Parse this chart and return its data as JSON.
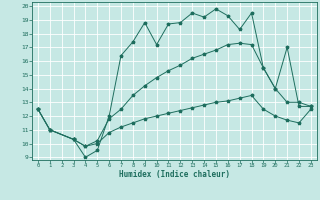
{
  "xlabel": "Humidex (Indice chaleur)",
  "xlim": [
    -0.5,
    23.5
  ],
  "ylim": [
    9,
    20
  ],
  "yticks": [
    9,
    10,
    11,
    12,
    13,
    14,
    15,
    16,
    17,
    18,
    19,
    20
  ],
  "xticks": [
    0,
    1,
    2,
    3,
    4,
    5,
    6,
    7,
    8,
    9,
    10,
    11,
    12,
    13,
    14,
    15,
    16,
    17,
    18,
    19,
    20,
    21,
    22,
    23
  ],
  "bg_color": "#c6e8e4",
  "line_color": "#1e6e5e",
  "line1_x": [
    0,
    1,
    3,
    4,
    5,
    6,
    7,
    8,
    9,
    10,
    11,
    12,
    13,
    14,
    15,
    16,
    17,
    18,
    19,
    20,
    21,
    22,
    23
  ],
  "line1_y": [
    12.5,
    11.0,
    10.3,
    9.0,
    9.5,
    12.0,
    16.4,
    17.4,
    18.8,
    17.2,
    18.7,
    18.8,
    19.5,
    19.2,
    19.8,
    19.3,
    18.3,
    19.5,
    15.5,
    14.0,
    17.0,
    12.7,
    12.7
  ],
  "line2_x": [
    0,
    1,
    3,
    4,
    5,
    6,
    7,
    8,
    9,
    10,
    11,
    12,
    13,
    14,
    15,
    16,
    17,
    18,
    19,
    20,
    21,
    22,
    23
  ],
  "line2_y": [
    12.5,
    11.0,
    10.3,
    9.8,
    10.2,
    11.8,
    12.5,
    13.5,
    14.2,
    14.8,
    15.3,
    15.7,
    16.2,
    16.5,
    16.8,
    17.2,
    17.3,
    17.2,
    15.5,
    14.0,
    13.0,
    13.0,
    12.7
  ],
  "line3_x": [
    0,
    1,
    3,
    4,
    5,
    6,
    7,
    8,
    9,
    10,
    11,
    12,
    13,
    14,
    15,
    16,
    17,
    18,
    19,
    20,
    21,
    22,
    23
  ],
  "line3_y": [
    12.5,
    11.0,
    10.3,
    9.8,
    10.0,
    10.8,
    11.2,
    11.5,
    11.8,
    12.0,
    12.2,
    12.4,
    12.6,
    12.8,
    13.0,
    13.1,
    13.3,
    13.5,
    12.5,
    12.0,
    11.7,
    11.5,
    12.5
  ]
}
